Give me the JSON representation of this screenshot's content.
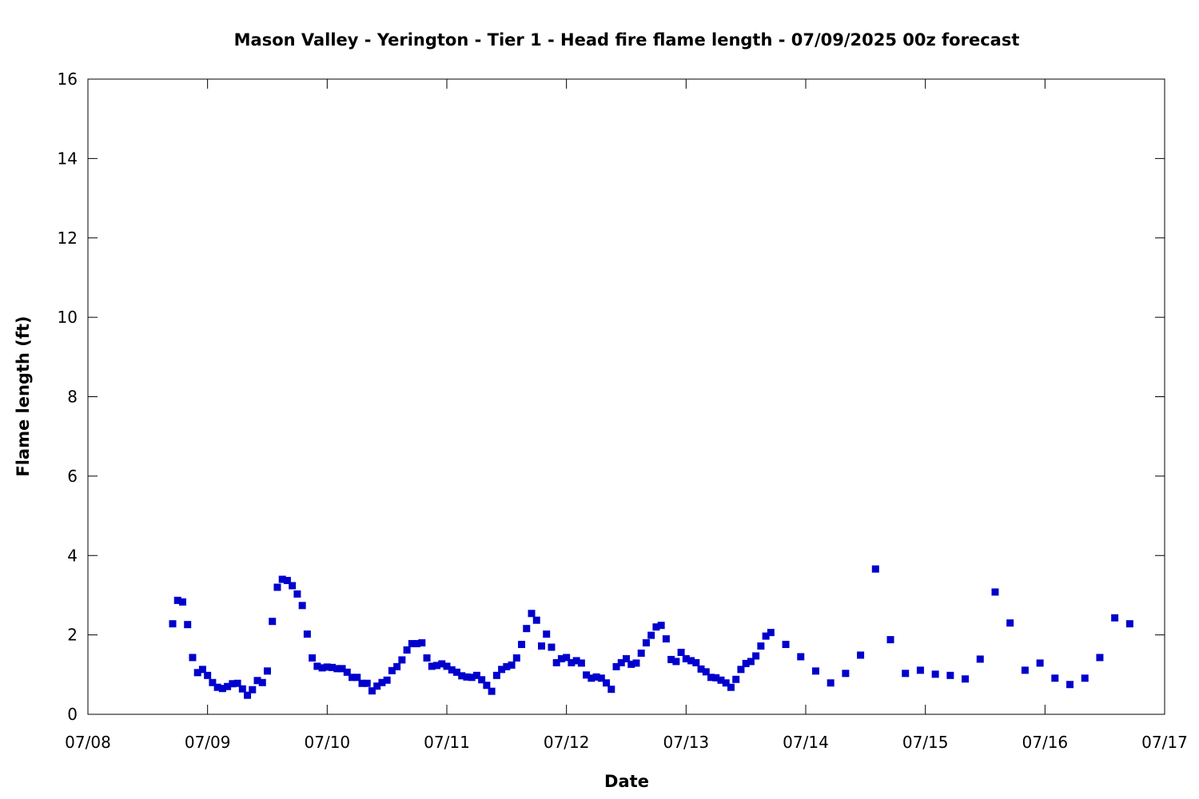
{
  "chart_data": {
    "type": "scatter",
    "title": "Mason Valley - Yerington - Tier 1 - Head fire flame length - 07/09/2025 00z forecast",
    "xlabel": "Date",
    "ylabel": "Flame length (ft)",
    "x_axis": {
      "type": "date",
      "start": "07/08",
      "end": "07/17",
      "ticks": [
        "07/08",
        "07/09",
        "07/10",
        "07/11",
        "07/12",
        "07/13",
        "07/14",
        "07/15",
        "07/16",
        "07/17"
      ]
    },
    "ylim": [
      0,
      16
    ],
    "yticks": [
      "0",
      "2",
      "4",
      "6",
      "8",
      "10",
      "12",
      "14",
      "16"
    ],
    "grid": false,
    "marker_color": "#0000cc",
    "series": [
      {
        "points": [
          [
            "07/08 17:00",
            2.28
          ],
          [
            "07/08 18:00",
            2.87
          ],
          [
            "07/08 19:00",
            2.83
          ],
          [
            "07/08 20:00",
            2.26
          ],
          [
            "07/08 21:00",
            1.43
          ],
          [
            "07/08 22:00",
            1.05
          ],
          [
            "07/08 23:00",
            1.13
          ],
          [
            "07/09 00:00",
            0.98
          ],
          [
            "07/09 01:00",
            0.8
          ],
          [
            "07/09 02:00",
            0.68
          ],
          [
            "07/09 03:00",
            0.65
          ],
          [
            "07/09 04:00",
            0.7
          ],
          [
            "07/09 05:00",
            0.77
          ],
          [
            "07/09 06:00",
            0.78
          ],
          [
            "07/09 07:00",
            0.64
          ],
          [
            "07/09 08:00",
            0.48
          ],
          [
            "07/09 09:00",
            0.62
          ],
          [
            "07/09 10:00",
            0.85
          ],
          [
            "07/09 11:00",
            0.8
          ],
          [
            "07/09 12:00",
            1.09
          ],
          [
            "07/09 13:00",
            2.34
          ],
          [
            "07/09 14:00",
            3.2
          ],
          [
            "07/09 15:00",
            3.4
          ],
          [
            "07/09 16:00",
            3.37
          ],
          [
            "07/09 17:00",
            3.24
          ],
          [
            "07/09 18:00",
            3.03
          ],
          [
            "07/09 19:00",
            2.74
          ],
          [
            "07/09 20:00",
            2.02
          ],
          [
            "07/09 21:00",
            1.42
          ],
          [
            "07/09 22:00",
            1.21
          ],
          [
            "07/09 23:00",
            1.17
          ],
          [
            "07/10 00:00",
            1.19
          ],
          [
            "07/10 01:00",
            1.18
          ],
          [
            "07/10 02:00",
            1.15
          ],
          [
            "07/10 03:00",
            1.15
          ],
          [
            "07/10 04:00",
            1.06
          ],
          [
            "07/10 05:00",
            0.93
          ],
          [
            "07/10 06:00",
            0.93
          ],
          [
            "07/10 07:00",
            0.78
          ],
          [
            "07/10 08:00",
            0.78
          ],
          [
            "07/10 09:00",
            0.59
          ],
          [
            "07/10 10:00",
            0.71
          ],
          [
            "07/10 11:00",
            0.8
          ],
          [
            "07/10 12:00",
            0.86
          ],
          [
            "07/10 13:00",
            1.1
          ],
          [
            "07/10 14:00",
            1.2
          ],
          [
            "07/10 15:00",
            1.37
          ],
          [
            "07/10 16:00",
            1.62
          ],
          [
            "07/10 17:00",
            1.78
          ],
          [
            "07/10 18:00",
            1.78
          ],
          [
            "07/10 19:00",
            1.8
          ],
          [
            "07/10 20:00",
            1.42
          ],
          [
            "07/10 21:00",
            1.21
          ],
          [
            "07/10 22:00",
            1.23
          ],
          [
            "07/10 23:00",
            1.27
          ],
          [
            "07/11 00:00",
            1.21
          ],
          [
            "07/11 01:00",
            1.12
          ],
          [
            "07/11 02:00",
            1.06
          ],
          [
            "07/11 03:00",
            0.97
          ],
          [
            "07/11 04:00",
            0.94
          ],
          [
            "07/11 05:00",
            0.93
          ],
          [
            "07/11 06:00",
            0.98
          ],
          [
            "07/11 07:00",
            0.87
          ],
          [
            "07/11 08:00",
            0.73
          ],
          [
            "07/11 09:00",
            0.58
          ],
          [
            "07/11 10:00",
            0.98
          ],
          [
            "07/11 11:00",
            1.13
          ],
          [
            "07/11 12:00",
            1.2
          ],
          [
            "07/11 13:00",
            1.24
          ],
          [
            "07/11 14:00",
            1.42
          ],
          [
            "07/11 15:00",
            1.76
          ],
          [
            "07/11 16:00",
            2.16
          ],
          [
            "07/11 17:00",
            2.54
          ],
          [
            "07/11 18:00",
            2.37
          ],
          [
            "07/11 19:00",
            1.72
          ],
          [
            "07/11 20:00",
            2.02
          ],
          [
            "07/11 21:00",
            1.69
          ],
          [
            "07/11 22:00",
            1.3
          ],
          [
            "07/11 23:00",
            1.4
          ],
          [
            "07/12 00:00",
            1.43
          ],
          [
            "07/12 01:00",
            1.3
          ],
          [
            "07/12 02:00",
            1.35
          ],
          [
            "07/12 03:00",
            1.29
          ],
          [
            "07/12 04:00",
            0.99
          ],
          [
            "07/12 05:00",
            0.91
          ],
          [
            "07/12 06:00",
            0.94
          ],
          [
            "07/12 07:00",
            0.91
          ],
          [
            "07/12 08:00",
            0.79
          ],
          [
            "07/12 09:00",
            0.63
          ],
          [
            "07/12 10:00",
            1.2
          ],
          [
            "07/12 11:00",
            1.3
          ],
          [
            "07/12 12:00",
            1.4
          ],
          [
            "07/12 13:00",
            1.26
          ],
          [
            "07/12 14:00",
            1.29
          ],
          [
            "07/12 15:00",
            1.54
          ],
          [
            "07/12 16:00",
            1.8
          ],
          [
            "07/12 17:00",
            1.99
          ],
          [
            "07/12 18:00",
            2.2
          ],
          [
            "07/12 19:00",
            2.24
          ],
          [
            "07/12 20:00",
            1.9
          ],
          [
            "07/12 21:00",
            1.38
          ],
          [
            "07/12 22:00",
            1.33
          ],
          [
            "07/12 23:00",
            1.56
          ],
          [
            "07/13 00:00",
            1.4
          ],
          [
            "07/13 01:00",
            1.35
          ],
          [
            "07/13 02:00",
            1.3
          ],
          [
            "07/13 03:00",
            1.14
          ],
          [
            "07/13 04:00",
            1.07
          ],
          [
            "07/13 05:00",
            0.93
          ],
          [
            "07/13 06:00",
            0.92
          ],
          [
            "07/13 07:00",
            0.86
          ],
          [
            "07/13 08:00",
            0.79
          ],
          [
            "07/13 09:00",
            0.68
          ],
          [
            "07/13 10:00",
            0.88
          ],
          [
            "07/13 11:00",
            1.13
          ],
          [
            "07/13 12:00",
            1.28
          ],
          [
            "07/13 13:00",
            1.33
          ],
          [
            "07/13 14:00",
            1.47
          ],
          [
            "07/13 15:00",
            1.72
          ],
          [
            "07/13 16:00",
            1.97
          ],
          [
            "07/13 17:00",
            2.06
          ],
          [
            "07/13 20:00",
            1.76
          ],
          [
            "07/13 23:00",
            1.45
          ],
          [
            "07/14 02:00",
            1.09
          ],
          [
            "07/14 05:00",
            0.79
          ],
          [
            "07/14 08:00",
            1.03
          ],
          [
            "07/14 11:00",
            1.49
          ],
          [
            "07/14 14:00",
            3.66
          ],
          [
            "07/14 17:00",
            1.88
          ],
          [
            "07/14 20:00",
            1.03
          ],
          [
            "07/14 23:00",
            1.11
          ],
          [
            "07/15 02:00",
            1.01
          ],
          [
            "07/15 05:00",
            0.98
          ],
          [
            "07/15 08:00",
            0.89
          ],
          [
            "07/15 11:00",
            1.39
          ],
          [
            "07/15 14:00",
            3.08
          ],
          [
            "07/15 17:00",
            2.3
          ],
          [
            "07/15 20:00",
            1.11
          ],
          [
            "07/15 23:00",
            1.29
          ],
          [
            "07/16 02:00",
            0.91
          ],
          [
            "07/16 05:00",
            0.75
          ],
          [
            "07/16 08:00",
            0.91
          ],
          [
            "07/16 11:00",
            1.43
          ],
          [
            "07/16 14:00",
            2.43
          ],
          [
            "07/16 17:00",
            2.28
          ]
        ]
      }
    ]
  }
}
